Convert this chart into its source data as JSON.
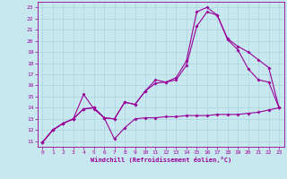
{
  "xlabel": "Windchill (Refroidissement éolien,°C)",
  "xlim": [
    -0.5,
    23.5
  ],
  "ylim": [
    10.5,
    23.5
  ],
  "xticks": [
    0,
    1,
    2,
    3,
    4,
    5,
    6,
    7,
    8,
    9,
    10,
    11,
    12,
    13,
    14,
    15,
    16,
    17,
    18,
    19,
    20,
    21,
    22,
    23
  ],
  "yticks": [
    11,
    12,
    13,
    14,
    15,
    16,
    17,
    18,
    19,
    20,
    21,
    22,
    23
  ],
  "bg_color": "#c8e8f0",
  "line_color": "#990099",
  "grid_color": "#aad4e0",
  "line1_x": [
    0,
    1,
    2,
    3,
    4,
    5,
    6,
    7,
    8,
    9,
    10,
    11,
    12,
    13,
    14,
    15,
    16,
    17,
    18,
    19,
    20,
    21,
    22,
    23
  ],
  "line1_y": [
    10.9,
    12.0,
    12.6,
    13.0,
    15.2,
    13.9,
    13.1,
    11.2,
    12.2,
    13.0,
    13.1,
    13.1,
    13.2,
    13.2,
    13.3,
    13.3,
    13.3,
    13.4,
    13.4,
    13.4,
    13.5,
    13.6,
    13.8,
    14.0
  ],
  "line2_x": [
    0,
    1,
    2,
    3,
    4,
    5,
    6,
    7,
    8,
    9,
    10,
    11,
    12,
    13,
    14,
    15,
    16,
    17,
    18,
    19,
    20,
    21,
    22,
    23
  ],
  "line2_y": [
    10.9,
    12.0,
    12.6,
    13.0,
    13.9,
    14.0,
    13.1,
    13.0,
    14.5,
    14.3,
    15.5,
    16.5,
    16.3,
    16.7,
    18.2,
    22.6,
    23.0,
    22.3,
    20.1,
    19.2,
    17.5,
    16.5,
    16.3,
    14.0
  ],
  "line3_x": [
    0,
    1,
    2,
    3,
    4,
    5,
    6,
    7,
    8,
    9,
    10,
    11,
    12,
    13,
    14,
    15,
    16,
    17,
    18,
    19,
    20,
    21,
    22,
    23
  ],
  "line3_y": [
    10.9,
    12.0,
    12.6,
    13.0,
    13.9,
    14.0,
    13.1,
    13.0,
    14.5,
    14.3,
    15.5,
    16.2,
    16.3,
    16.5,
    17.8,
    21.3,
    22.6,
    22.3,
    20.2,
    19.5,
    19.0,
    18.3,
    17.6,
    14.0
  ]
}
